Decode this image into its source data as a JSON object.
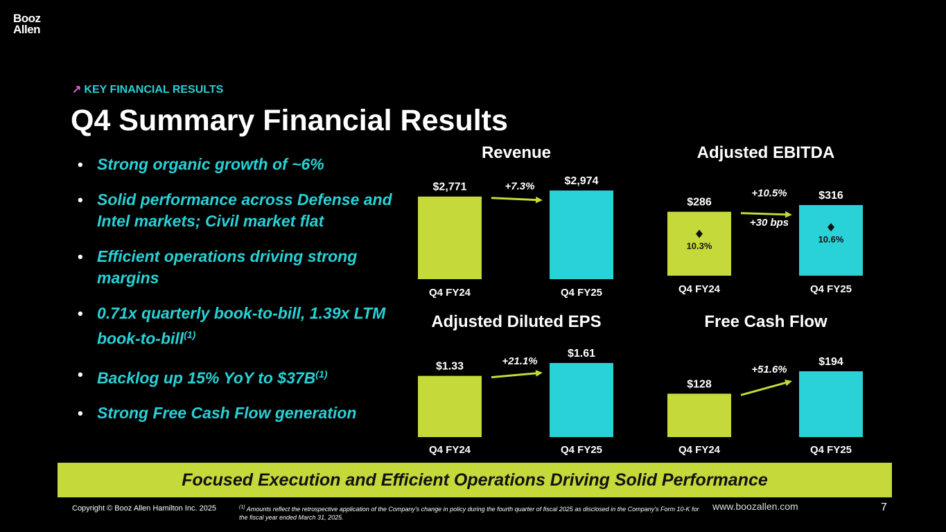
{
  "logo": {
    "line1": "Booz",
    "line2": "Allen"
  },
  "section_tag": "KEY FINANCIAL RESULTS",
  "title": "Q4 Summary Financial Results",
  "bullets": [
    {
      "text": "Strong organic growth of ~6%"
    },
    {
      "text": "Solid performance across Defense and Intel markets; Civil market flat"
    },
    {
      "text": "Efficient operations driving strong margins"
    },
    {
      "text": "0.71x quarterly book-to-bill, 1.39x LTM book-to-bill",
      "sup": "(1)"
    },
    {
      "text": "Backlog up 15% YoY to $37B",
      "sup": "(1)"
    },
    {
      "text": "Strong Free Cash Flow generation"
    }
  ],
  "colors": {
    "fy24": "#c6d93a",
    "fy25": "#28d2d6",
    "arrow": "#c6d93a",
    "banner": "#c6d93a"
  },
  "chart_data": [
    {
      "type": "bar",
      "title": "Revenue",
      "categories": [
        "Q4 FY24",
        "Q4 FY25"
      ],
      "values": [
        2771,
        2974
      ],
      "labels": [
        "$2,771",
        "$2,974"
      ],
      "growth": "+7.3%"
    },
    {
      "type": "bar",
      "title": "Adjusted EBITDA",
      "categories": [
        "Q4 FY24",
        "Q4 FY25"
      ],
      "values": [
        286,
        316
      ],
      "labels": [
        "$286",
        "$316"
      ],
      "growth": "+10.5%",
      "margins": [
        "10.3%",
        "10.6%"
      ],
      "margin_change": "+30 bps"
    },
    {
      "type": "bar",
      "title": "Adjusted Diluted EPS",
      "categories": [
        "Q4 FY24",
        "Q4 FY25"
      ],
      "values": [
        1.33,
        1.61
      ],
      "labels": [
        "$1.33",
        "$1.61"
      ],
      "growth": "+21.1%"
    },
    {
      "type": "bar",
      "title": "Free Cash Flow",
      "categories": [
        "Q4 FY24",
        "Q4 FY25"
      ],
      "values": [
        128,
        194
      ],
      "labels": [
        "$128",
        "$194"
      ],
      "growth": "+51.6%"
    }
  ],
  "banner": "Focused Execution and Efficient Operations Driving Solid Performance",
  "footer": {
    "copyright": "Copyright © Booz Allen Hamilton Inc. 2025",
    "footnote_mark": "(1)",
    "footnote": "Amounts reflect the retrospective application of the Company's change in policy during the fourth quarter of fiscal 2025 as disclosed in the Company's Form 10-K for the fiscal year ended March 31, 2025.",
    "website": "www.boozallen.com",
    "page_number": "7"
  }
}
